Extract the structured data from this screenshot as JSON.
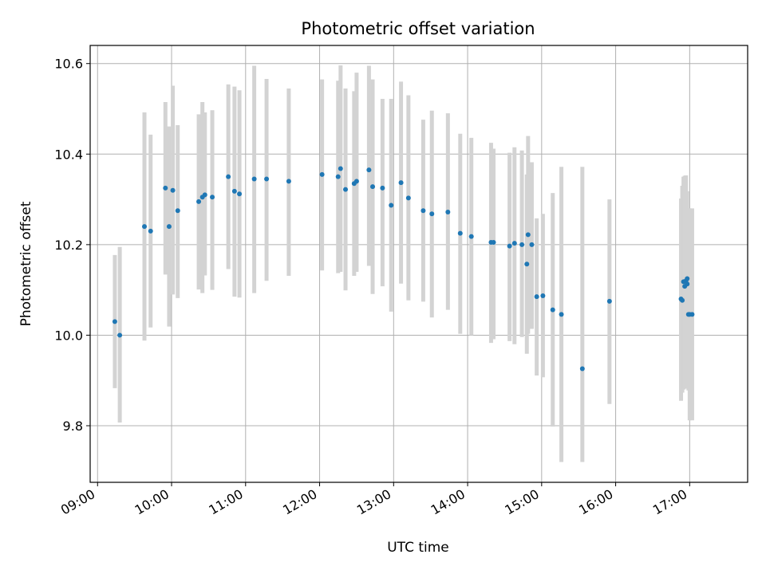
{
  "chart_data": {
    "type": "scatter",
    "title": "Photometric offset variation",
    "xlabel": "UTC time",
    "ylabel": "Photometric offset",
    "x_axis": "time",
    "x_ticks": [
      "09:00",
      "10:00",
      "11:00",
      "12:00",
      "13:00",
      "14:00",
      "15:00",
      "16:00",
      "17:00"
    ],
    "y_ticks": [
      "9.8",
      "10.0",
      "10.2",
      "10.4",
      "10.6"
    ],
    "xlim": [
      "08:54",
      "17:47"
    ],
    "ylim": [
      9.675,
      10.64
    ],
    "grid": true,
    "legend": "none",
    "point_color": "#1f77b4",
    "errorbar_color": "#d3d3d3",
    "series": [
      {
        "x": [
          "09:14",
          "09:18",
          "09:38",
          "09:43",
          "09:55",
          "09:58",
          "10:01",
          "10:05",
          "10:22",
          "10:25",
          "10:27",
          "10:33",
          "10:46",
          "10:51",
          "10:55",
          "11:07",
          "11:17",
          "11:35",
          "12:02",
          "12:15",
          "12:17",
          "12:21",
          "12:28",
          "12:30",
          "12:40",
          "12:43",
          "12:51",
          "12:58",
          "13:06",
          "13:12",
          "13:24",
          "13:31",
          "13:44",
          "13:54",
          "14:03",
          "14:19",
          "14:21",
          "14:34",
          "14:38",
          "14:44",
          "14:48",
          "14:49",
          "14:52",
          "14:56",
          "15:01",
          "15:09",
          "15:16",
          "15:33",
          "15:55",
          "16:53",
          "16:54",
          "16:55",
          "16:56",
          "16:57",
          "16:58",
          "16:58",
          "16:59",
          "17:00",
          "17:02"
        ],
        "y": [
          10.03,
          10.0,
          10.24,
          10.23,
          10.325,
          10.24,
          10.32,
          10.275,
          10.295,
          10.305,
          10.31,
          10.305,
          10.35,
          10.318,
          10.312,
          10.345,
          10.345,
          10.34,
          10.355,
          10.35,
          10.368,
          10.322,
          10.335,
          10.34,
          10.365,
          10.328,
          10.325,
          10.287,
          10.337,
          10.303,
          10.275,
          10.268,
          10.272,
          10.225,
          10.218,
          10.205,
          10.205,
          10.197,
          10.203,
          10.2,
          10.157,
          10.222,
          10.2,
          10.085,
          10.087,
          10.056,
          10.046,
          9.926,
          10.075,
          10.08,
          10.077,
          10.118,
          10.108,
          10.12,
          10.125,
          10.113,
          10.046,
          10.046,
          10.046
        ],
        "yerr_low": [
          9.883,
          9.807,
          9.988,
          10.017,
          10.134,
          10.019,
          10.09,
          10.082,
          10.101,
          10.093,
          10.132,
          10.1,
          10.146,
          10.085,
          10.083,
          10.093,
          10.12,
          10.131,
          10.143,
          10.137,
          10.14,
          10.099,
          10.131,
          10.14,
          10.153,
          10.091,
          10.108,
          10.052,
          10.114,
          10.077,
          10.074,
          10.039,
          10.056,
          10.003,
          10.0,
          9.983,
          9.991,
          9.987,
          9.98,
          9.996,
          9.959,
          10.003,
          10.014,
          9.911,
          9.907,
          9.798,
          9.72,
          9.72,
          9.848,
          9.855,
          9.873,
          9.88,
          9.882,
          9.885,
          9.89,
          9.89,
          9.878,
          9.812,
          9.812
        ],
        "yerr_high": [
          10.177,
          10.195,
          10.492,
          10.443,
          10.515,
          10.461,
          10.551,
          10.464,
          10.488,
          10.515,
          10.492,
          10.497,
          10.554,
          10.549,
          10.541,
          10.595,
          10.566,
          10.545,
          10.565,
          10.562,
          10.596,
          10.545,
          10.539,
          10.58,
          10.595,
          10.565,
          10.522,
          10.522,
          10.56,
          10.53,
          10.476,
          10.496,
          10.49,
          10.445,
          10.436,
          10.425,
          10.412,
          10.403,
          10.415,
          10.408,
          10.355,
          10.44,
          10.382,
          10.258,
          10.268,
          10.314,
          10.372,
          10.372,
          10.3,
          10.302,
          10.33,
          10.35,
          10.352,
          10.353,
          10.318,
          10.28,
          10.28,
          10.28,
          10.28
        ]
      }
    ]
  }
}
